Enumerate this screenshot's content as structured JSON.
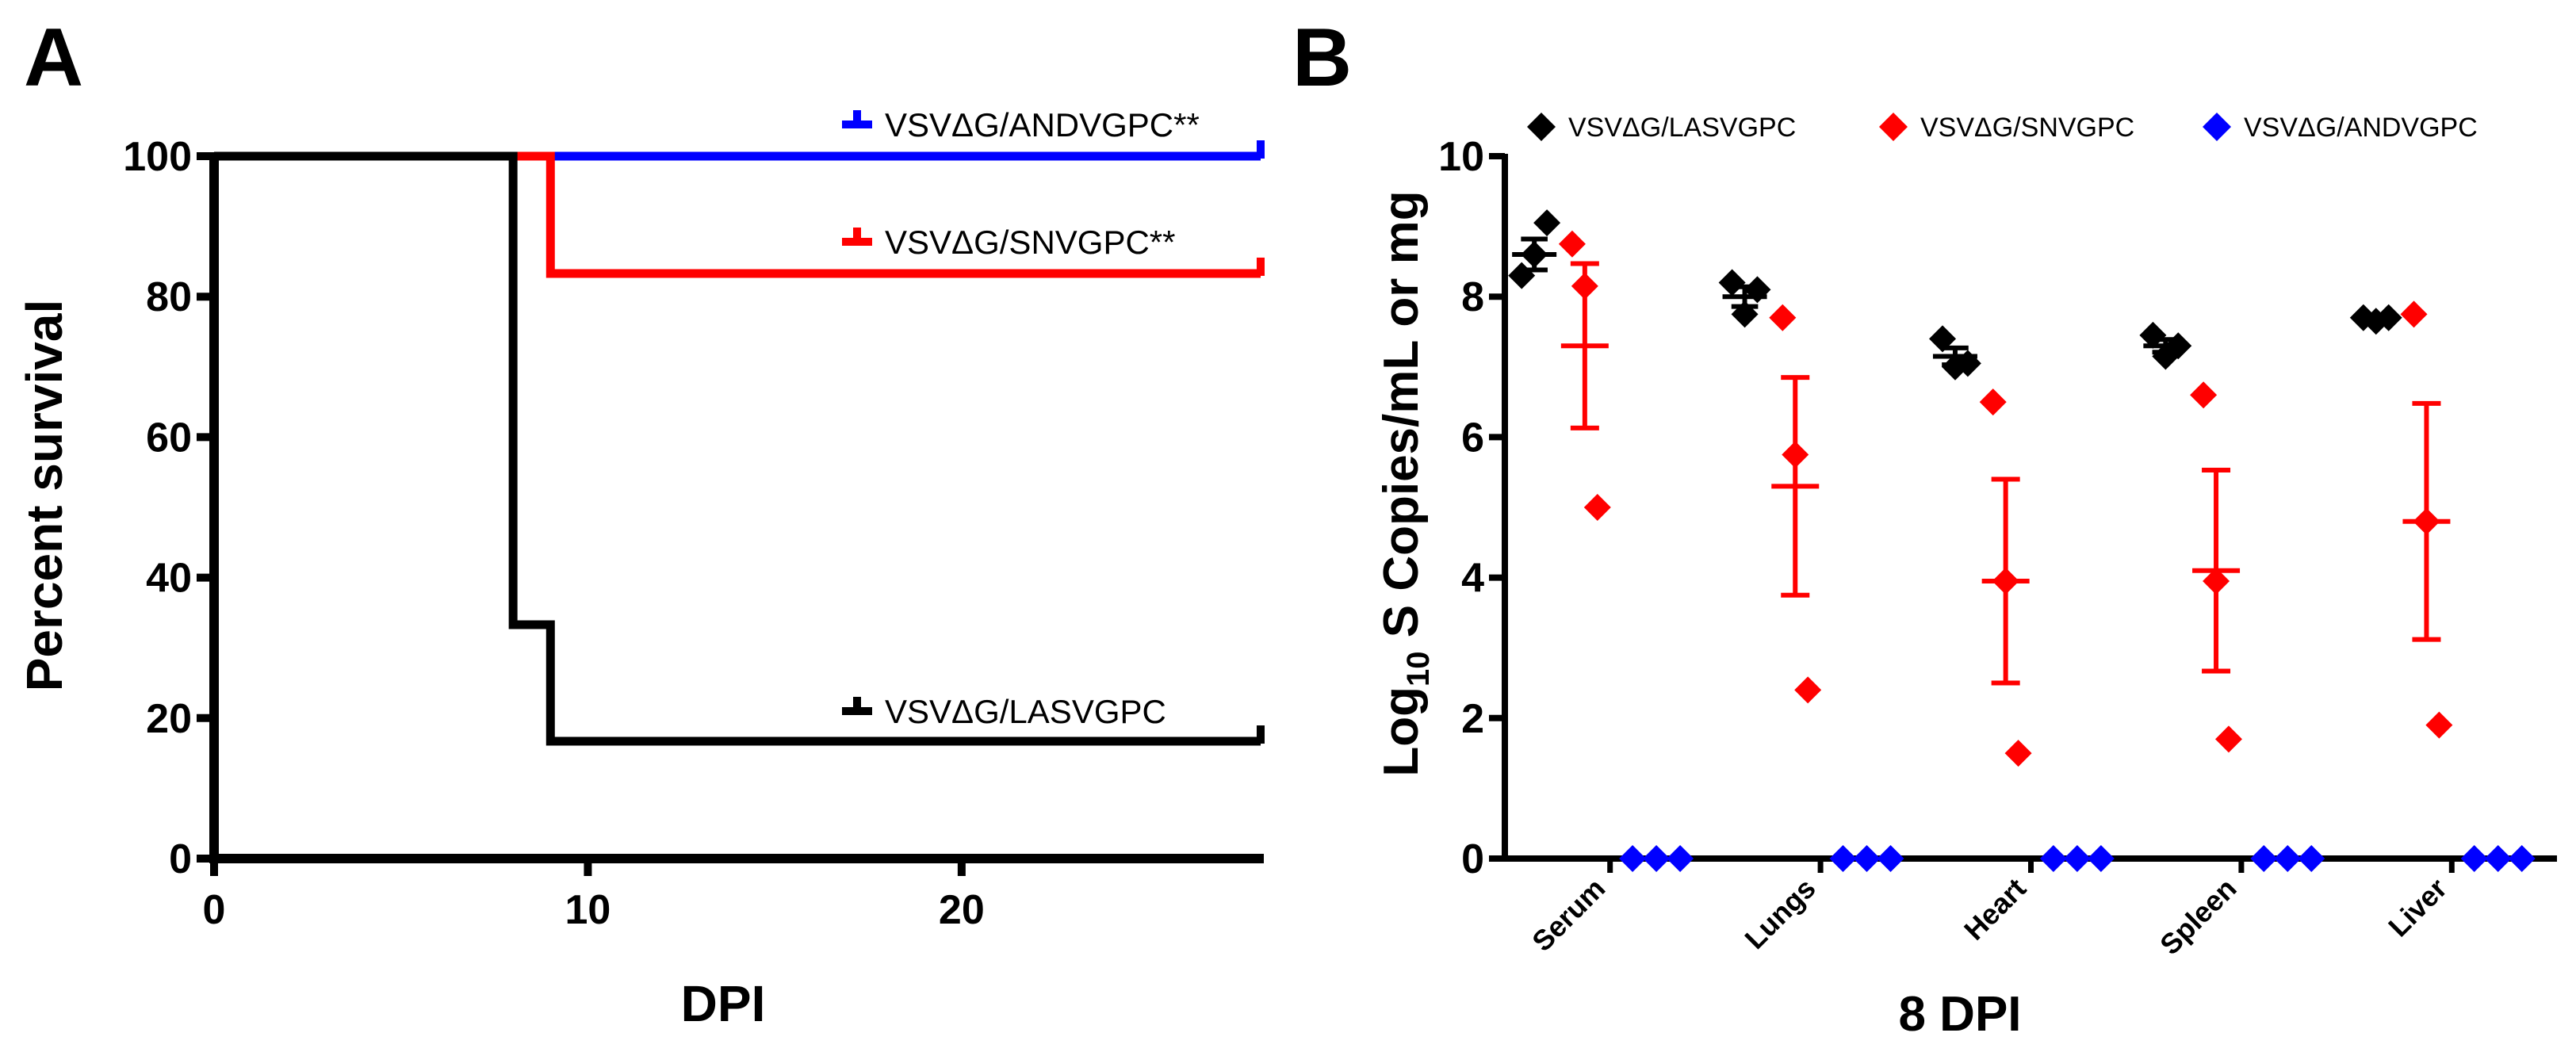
{
  "chart_data": [
    {
      "panel": "A",
      "type": "line",
      "subtype": "kaplan-meier",
      "xlabel": "DPI",
      "ylabel": "Percent survival",
      "xlim": [
        0,
        28
      ],
      "ylim": [
        0,
        100
      ],
      "xticks": [
        0,
        10,
        20
      ],
      "yticks": [
        0,
        20,
        40,
        60,
        80,
        100
      ],
      "series": [
        {
          "name": "VSVΔG/ANDVGPC**",
          "color": "#0000ff",
          "steps": [
            [
              0,
              100
            ],
            [
              28,
              100
            ]
          ]
        },
        {
          "name": "VSVΔG/SNVGPC**",
          "color": "#ff0000",
          "steps": [
            [
              0,
              100
            ],
            [
              9,
              100
            ],
            [
              9,
              83.3
            ],
            [
              28,
              83.3
            ]
          ]
        },
        {
          "name": "VSVΔG/LASVGPC",
          "color": "#000000",
          "steps": [
            [
              0,
              100
            ],
            [
              8,
              100
            ],
            [
              8,
              33.3
            ],
            [
              9,
              33.3
            ],
            [
              9,
              16.7
            ],
            [
              28,
              16.7
            ]
          ]
        }
      ]
    },
    {
      "panel": "B",
      "type": "scatter",
      "title": "",
      "xlabel": "8 DPI",
      "ylabel_main": "Log",
      "ylabel_sub": "10",
      "ylabel_rest": " S Copies/mL or mg",
      "ylim": [
        0,
        10
      ],
      "yticks": [
        0,
        2,
        4,
        6,
        8,
        10
      ],
      "categories": [
        "Serum",
        "Lungs",
        "Heart",
        "Spleen",
        "Liver"
      ],
      "legend": [
        {
          "name": "VSVΔG/LASVGPC",
          "color": "#000000"
        },
        {
          "name": "VSVΔG/SNVGPC",
          "color": "#ff0000"
        },
        {
          "name": "VSVΔG/ANDVGPC",
          "color": "#0000ff"
        }
      ],
      "series": [
        {
          "name": "VSVΔG/LASVGPC",
          "color": "#000000",
          "points": [
            [
              8.3,
              8.6,
              9.05
            ],
            [
              8.2,
              7.75,
              8.1
            ],
            [
              7.4,
              7.0,
              7.05
            ],
            [
              7.45,
              7.15,
              7.3
            ],
            [
              7.7,
              7.65,
              7.7
            ]
          ],
          "mean": [
            8.6,
            8.0,
            7.15,
            7.3,
            7.7
          ],
          "sem": [
            0.22,
            0.14,
            0.12,
            0.09,
            0.02
          ]
        },
        {
          "name": "VSVΔG/SNVGPC",
          "color": "#ff0000",
          "points": [
            [
              8.75,
              8.15,
              5.0
            ],
            [
              7.7,
              5.75,
              2.4
            ],
            [
              6.5,
              3.95,
              1.5
            ],
            [
              6.6,
              3.95,
              1.7
            ],
            [
              7.75,
              4.8,
              1.9
            ]
          ],
          "mean": [
            7.3,
            5.3,
            3.95,
            4.1,
            4.8
          ],
          "sem": [
            1.17,
            1.55,
            1.45,
            1.43,
            1.68
          ]
        },
        {
          "name": "VSVΔG/ANDVGPC",
          "color": "#0000ff",
          "points": [
            [
              0,
              0,
              0
            ],
            [
              0,
              0,
              0
            ],
            [
              0,
              0,
              0
            ],
            [
              0,
              0,
              0
            ],
            [
              0,
              0,
              0
            ]
          ]
        }
      ]
    }
  ]
}
